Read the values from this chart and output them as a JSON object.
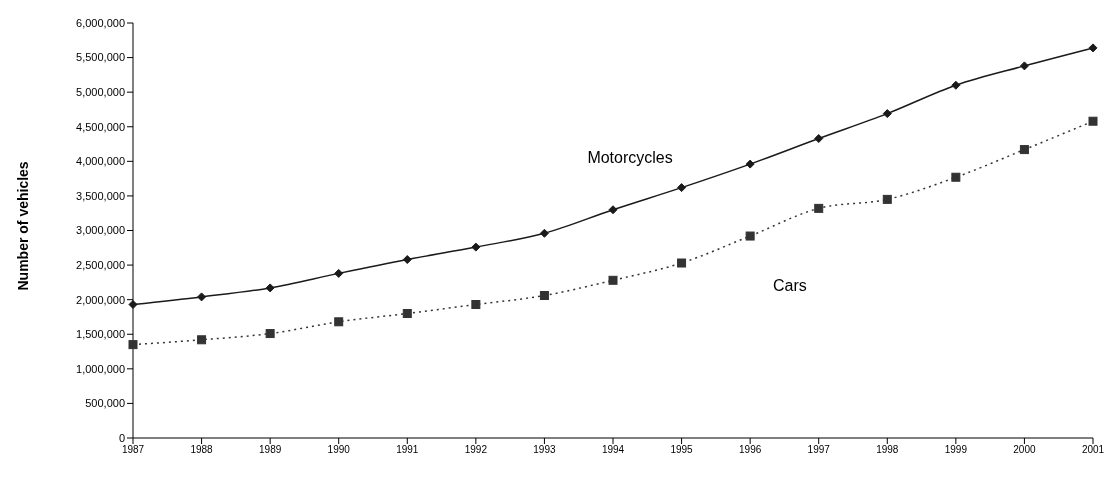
{
  "chart_data": {
    "type": "line",
    "ylabel": "Number of vehicles",
    "categories": [
      "1987",
      "1988",
      "1989",
      "1990",
      "1991",
      "1992",
      "1993",
      "1994",
      "1995",
      "1996",
      "1997",
      "1998",
      "1999",
      "2000",
      "2001"
    ],
    "series": [
      {
        "name": "Motorcycles",
        "color": "#1a1a1a",
        "marker": "diamond",
        "line_style": "solid",
        "values": [
          1930000,
          2040000,
          2170000,
          2380000,
          2580000,
          2760000,
          2960000,
          3300000,
          3620000,
          3960000,
          4330000,
          4690000,
          5100000,
          5380000,
          5640000
        ]
      },
      {
        "name": "Cars",
        "color": "#333333",
        "marker": "square",
        "line_style": "dotted",
        "values": [
          1350000,
          1420000,
          1510000,
          1680000,
          1800000,
          1930000,
          2060000,
          2280000,
          2530000,
          2920000,
          3320000,
          3450000,
          3770000,
          4170000,
          4580000
        ]
      }
    ],
    "ylim": [
      0,
      6000000
    ],
    "yticks": [
      0,
      {
        "value": 500000,
        "label": "500,000"
      },
      {
        "value": 1000000,
        "label": "1,000,000"
      },
      {
        "value": 1500000,
        "label": "1,500,000"
      },
      {
        "value": 2000000,
        "label": "2,000,000"
      },
      {
        "value": 2500000,
        "label": "2,500,000"
      },
      {
        "value": 3000000,
        "label": "3,000,000"
      },
      {
        "value": 3500000,
        "label": "3,500,000"
      },
      {
        "value": 4000000,
        "label": "4,000,000"
      },
      {
        "value": 4500000,
        "label": "4,500,000"
      },
      {
        "value": 5000000,
        "label": "5,000,000"
      },
      {
        "value": 5500000,
        "label": "5,500,000"
      },
      {
        "value": 6000000,
        "label": "6,000,000"
      }
    ],
    "grid": false,
    "legend": false
  }
}
